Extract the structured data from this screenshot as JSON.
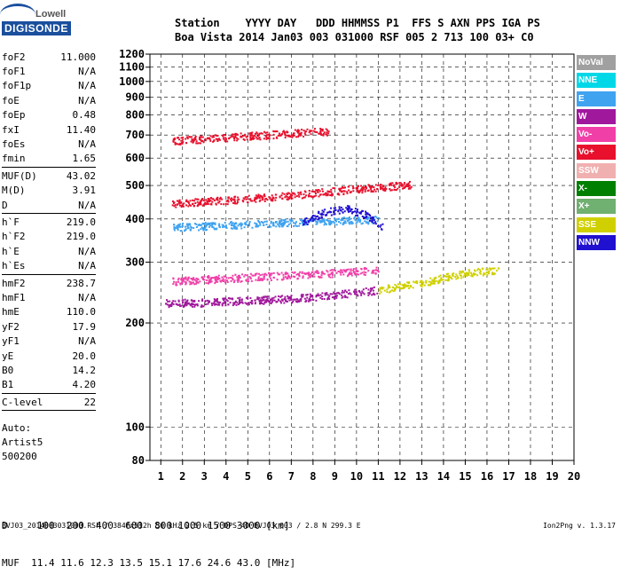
{
  "logo": {
    "top": "Lowell",
    "bottom": "DIGISONDE"
  },
  "header": {
    "line1": "Station    YYYY DAY   DDD HHMMSS P1  FFS S AXN PPS IGA PS",
    "line2": "Boa Vista 2014 Jan03 003 031000 RSF 005 2 713 100 03+ C0"
  },
  "params": [
    {
      "k": "foF2",
      "v": "11.000"
    },
    {
      "k": "foF1",
      "v": "N/A"
    },
    {
      "k": "foF1p",
      "v": "N/A"
    },
    {
      "k": "foE",
      "v": "N/A"
    },
    {
      "k": "foEp",
      "v": "0.48"
    },
    {
      "k": "fxI",
      "v": "11.40"
    },
    {
      "k": "foEs",
      "v": "N/A"
    },
    {
      "k": "fmin",
      "v": "1.65"
    },
    {
      "sep": true
    },
    {
      "k": "MUF(D)",
      "v": "43.02"
    },
    {
      "k": "M(D)",
      "v": "3.91"
    },
    {
      "k": "D",
      "v": "N/A"
    },
    {
      "sep": true
    },
    {
      "k": "h`F",
      "v": "219.0"
    },
    {
      "k": "h`F2",
      "v": "219.0"
    },
    {
      "k": "h`E",
      "v": "N/A"
    },
    {
      "k": "h`Es",
      "v": "N/A"
    },
    {
      "sep": true
    },
    {
      "k": "hmF2",
      "v": "238.7"
    },
    {
      "k": "hmF1",
      "v": "N/A"
    },
    {
      "k": "hmE",
      "v": "110.0"
    },
    {
      "k": "yF2",
      "v": "17.9"
    },
    {
      "k": "yF1",
      "v": "N/A"
    },
    {
      "k": "yE",
      "v": "20.0"
    },
    {
      "k": "B0",
      "v": "14.2"
    },
    {
      "k": "B1",
      "v": "4.20"
    },
    {
      "sep": true
    },
    {
      "k": "C-level",
      "v": "22"
    },
    {
      "sep": true
    }
  ],
  "footer_note": [
    "Auto:",
    "Artist5",
    "500200"
  ],
  "bottom": {
    "line1": "D     100  200  400  600  800 1000 1500 3000 [km]",
    "line2": "MUF  11.4 11.6 12.3 13.5 15.1 17.6 24.6 43.0 [MHz]"
  },
  "fileline": "BVJ03_2014003031000.RSF / 384fx512h 50 kHz 2.5 km / DPS-4D BVJ03 003 / 2.8 N 299.3 E",
  "version": "Ion2Png v. 1.3.17",
  "legend": [
    {
      "label": "NoVal",
      "color": "#a0a0a0"
    },
    {
      "label": "NNE",
      "color": "#00d8e8"
    },
    {
      "label": "E",
      "color": "#3fa3f0"
    },
    {
      "label": "W",
      "color": "#a0189c"
    },
    {
      "label": "Vo-",
      "color": "#f040a8"
    },
    {
      "label": "Vo+",
      "color": "#e8102c"
    },
    {
      "label": "SSW",
      "color": "#f0b0b0"
    },
    {
      "label": "X-",
      "color": "#008000"
    },
    {
      "label": "X+",
      "color": "#70b070"
    },
    {
      "label": "SSE",
      "color": "#d0d000"
    },
    {
      "label": "NNW",
      "color": "#2010d0"
    }
  ],
  "chart_data": {
    "type": "scatter",
    "xlim": [
      0.5,
      20
    ],
    "ylim": [
      80,
      1200
    ],
    "x_ticks": [
      1,
      2,
      3,
      4,
      5,
      6,
      7,
      8,
      9,
      10,
      11,
      12,
      13,
      14,
      15,
      16,
      17,
      18,
      19,
      20
    ],
    "y_ticks": [
      80,
      100,
      200,
      300,
      400,
      500,
      600,
      700,
      800,
      900,
      1000,
      1100,
      1200
    ],
    "y_scale": "log",
    "grid": true,
    "legend_position": "right",
    "traces": [
      {
        "name": "W",
        "color": "#a0189c",
        "x": [
          1.2,
          3,
          5,
          7,
          9,
          11
        ],
        "y": [
          229,
          230,
          233,
          236,
          242,
          250
        ]
      },
      {
        "name": "Vo+",
        "color": "#e8102c",
        "x": [
          1.5,
          4,
          7,
          10,
          12.5
        ],
        "y": [
          445,
          455,
          470,
          490,
          505
        ]
      },
      {
        "name": "Vo+",
        "color": "#e8102c",
        "x": [
          1.5,
          3,
          5,
          7,
          8.7
        ],
        "y": [
          675,
          685,
          697,
          710,
          720
        ]
      },
      {
        "name": "E",
        "color": "#3fa3f0",
        "x": [
          1.5,
          4,
          7,
          11
        ],
        "y": [
          380,
          385,
          392,
          400
        ]
      },
      {
        "name": "Vo-",
        "color": "#f040a8",
        "x": [
          1.5,
          5,
          9,
          11
        ],
        "y": [
          265,
          272,
          280,
          285
        ]
      },
      {
        "name": "NNW",
        "color": "#2010d0",
        "x": [
          7.5,
          8.5,
          9.5,
          10.5,
          11.2
        ],
        "y": [
          390,
          420,
          430,
          410,
          380
        ]
      },
      {
        "name": "SSE",
        "color": "#d0d000",
        "x": [
          11,
          13,
          15,
          16.5
        ],
        "y": [
          250,
          262,
          280,
          285
        ]
      }
    ]
  }
}
